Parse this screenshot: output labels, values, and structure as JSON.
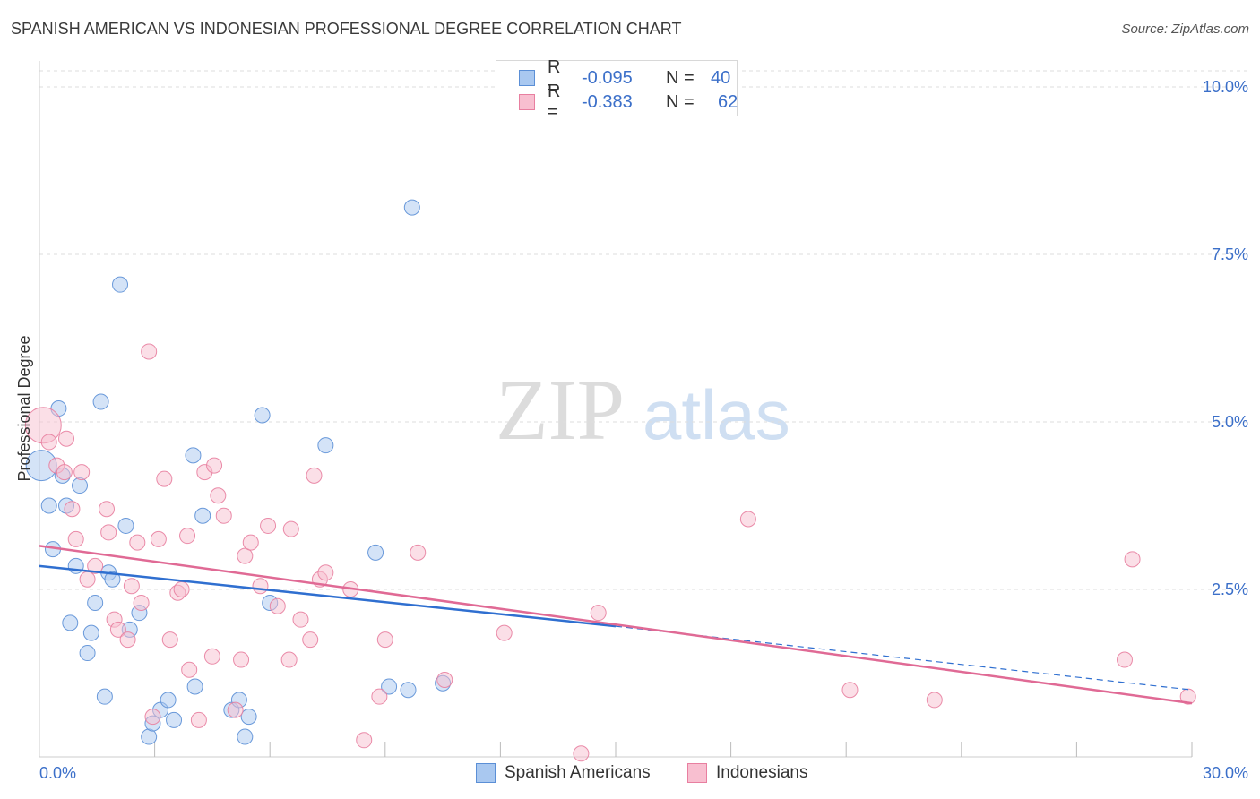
{
  "title": "SPANISH AMERICAN VS INDONESIAN PROFESSIONAL DEGREE CORRELATION CHART",
  "source": "Source: ZipAtlas.com",
  "watermark": {
    "zip": "ZIP",
    "atlas": "atlas"
  },
  "legend_top": [
    {
      "r_label": "R =",
      "r_value": "-0.095",
      "n_label": "N =",
      "n_value": "40",
      "color": "#a9c8f0",
      "stroke": "#5b8fd6"
    },
    {
      "r_label": "R =",
      "r_value": "-0.383",
      "n_label": "N =",
      "n_value": "62",
      "color": "#f8bfd0",
      "stroke": "#e87fa0"
    }
  ],
  "legend_bottom": [
    "Spanish Americans",
    "Indonesians"
  ],
  "chart_data": {
    "type": "scatter",
    "title": "SPANISH AMERICAN VS INDONESIAN PROFESSIONAL DEGREE CORRELATION CHART",
    "xlabel": "",
    "ylabel": "Professional Degree",
    "xlim": [
      0,
      30
    ],
    "ylim": [
      0,
      10.2
    ],
    "x_tick_labels": [
      "0.0%",
      "30.0%"
    ],
    "y_ticks": [
      2.5,
      5.0,
      7.5,
      10.0
    ],
    "y_tick_labels": [
      "2.5%",
      "5.0%",
      "7.5%",
      "10.0%"
    ],
    "grid": "horizontal dashed",
    "legend_position": "top-center",
    "series": [
      {
        "name": "Spanish Americans",
        "color": "#a9c8f0",
        "stroke": "#5b8fd6",
        "trend": {
          "x0": 0,
          "y0": 2.85,
          "x1": 15,
          "y1": 1.95,
          "x_end": 30,
          "y_end": 1.0
        },
        "points": [
          [
            0.05,
            4.35
          ],
          [
            0.25,
            3.75
          ],
          [
            0.35,
            3.1
          ],
          [
            0.5,
            5.2
          ],
          [
            0.6,
            4.2
          ],
          [
            0.7,
            3.75
          ],
          [
            0.8,
            2.0
          ],
          [
            0.95,
            2.85
          ],
          [
            1.05,
            4.05
          ],
          [
            1.25,
            1.55
          ],
          [
            1.35,
            1.85
          ],
          [
            1.45,
            2.3
          ],
          [
            1.6,
            5.3
          ],
          [
            1.7,
            0.9
          ],
          [
            1.8,
            2.75
          ],
          [
            1.9,
            2.65
          ],
          [
            2.1,
            7.05
          ],
          [
            2.25,
            3.45
          ],
          [
            2.35,
            1.9
          ],
          [
            2.6,
            2.15
          ],
          [
            2.85,
            0.3
          ],
          [
            2.95,
            0.5
          ],
          [
            3.15,
            0.7
          ],
          [
            3.35,
            0.85
          ],
          [
            3.5,
            0.55
          ],
          [
            4.0,
            4.5
          ],
          [
            4.05,
            1.05
          ],
          [
            4.25,
            3.6
          ],
          [
            5.0,
            0.7
          ],
          [
            5.2,
            0.85
          ],
          [
            5.35,
            0.3
          ],
          [
            5.45,
            0.6
          ],
          [
            5.8,
            5.1
          ],
          [
            6.0,
            2.3
          ],
          [
            7.45,
            4.65
          ],
          [
            8.75,
            3.05
          ],
          [
            9.1,
            1.05
          ],
          [
            9.6,
            1.0
          ],
          [
            9.7,
            8.2
          ],
          [
            10.5,
            1.1
          ]
        ]
      },
      {
        "name": "Indonesians",
        "color": "#f8bfd0",
        "stroke": "#e87fa0",
        "trend": {
          "x0": 0,
          "y0": 3.15,
          "x1": 30,
          "y1": 0.8
        },
        "points": [
          [
            0.1,
            4.95
          ],
          [
            0.25,
            4.7
          ],
          [
            0.45,
            4.35
          ],
          [
            0.65,
            4.25
          ],
          [
            0.7,
            4.75
          ],
          [
            0.85,
            3.7
          ],
          [
            0.95,
            3.25
          ],
          [
            1.1,
            4.25
          ],
          [
            1.25,
            2.65
          ],
          [
            1.45,
            2.85
          ],
          [
            1.75,
            3.7
          ],
          [
            1.8,
            3.35
          ],
          [
            1.95,
            2.05
          ],
          [
            2.05,
            1.9
          ],
          [
            2.3,
            1.75
          ],
          [
            2.4,
            2.55
          ],
          [
            2.55,
            3.2
          ],
          [
            2.65,
            2.3
          ],
          [
            2.85,
            6.05
          ],
          [
            2.95,
            0.6
          ],
          [
            3.1,
            3.25
          ],
          [
            3.25,
            4.15
          ],
          [
            3.4,
            1.75
          ],
          [
            3.6,
            2.45
          ],
          [
            3.7,
            2.5
          ],
          [
            3.85,
            3.3
          ],
          [
            3.9,
            1.3
          ],
          [
            4.15,
            0.55
          ],
          [
            4.3,
            4.25
          ],
          [
            4.5,
            1.5
          ],
          [
            4.55,
            4.35
          ],
          [
            4.65,
            3.9
          ],
          [
            4.8,
            3.6
          ],
          [
            5.1,
            0.7
          ],
          [
            5.25,
            1.45
          ],
          [
            5.35,
            3.0
          ],
          [
            5.5,
            3.2
          ],
          [
            5.75,
            2.55
          ],
          [
            5.95,
            3.45
          ],
          [
            6.2,
            2.25
          ],
          [
            6.5,
            1.45
          ],
          [
            6.55,
            3.4
          ],
          [
            6.8,
            2.05
          ],
          [
            7.05,
            1.75
          ],
          [
            7.15,
            4.2
          ],
          [
            7.3,
            2.65
          ],
          [
            7.45,
            2.75
          ],
          [
            8.1,
            2.5
          ],
          [
            8.45,
            0.25
          ],
          [
            8.85,
            0.9
          ],
          [
            9.0,
            1.75
          ],
          [
            9.85,
            3.05
          ],
          [
            10.55,
            1.15
          ],
          [
            12.1,
            1.85
          ],
          [
            14.1,
            0.05
          ],
          [
            14.55,
            2.15
          ],
          [
            18.45,
            3.55
          ],
          [
            21.1,
            1.0
          ],
          [
            23.3,
            0.85
          ],
          [
            28.25,
            1.45
          ],
          [
            28.45,
            2.95
          ],
          [
            29.9,
            0.9
          ]
        ]
      }
    ]
  }
}
